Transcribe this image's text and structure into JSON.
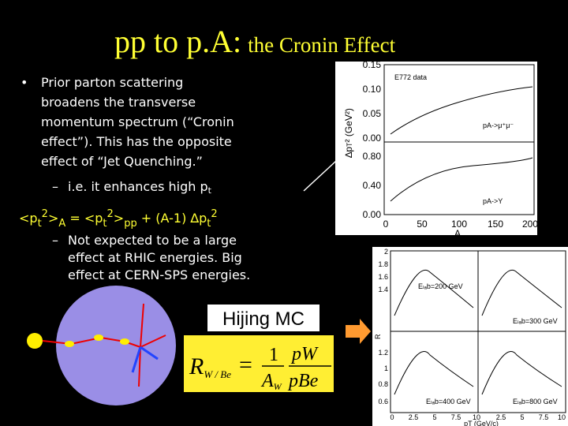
{
  "title": {
    "main": "pp to p.A:",
    "sub": "the Cronin Effect"
  },
  "bullets": [
    "•",
    "Prior parton scattering",
    "broadens the transverse",
    "momentum spectrum (“Cronin",
    "effect”).  This has the opposite",
    "effect of “Jet Quenching.”"
  ],
  "sub_bullet": {
    "dash": "–",
    "text": "i.e. it enhances high p",
    "sub": "t"
  },
  "formula": [
    "<p",
    "t",
    "2",
    ">",
    "A",
    " = <p",
    "t",
    "2",
    ">",
    "pp",
    " + (A-1) ",
    "∆p",
    "t",
    "2"
  ],
  "sub_bullet2": {
    "dash": "–",
    "lines": [
      "Not expected to be a large",
      "effect at RHIC energies.  Big",
      "effect at CERN-SPS energies."
    ]
  },
  "hijing": "Hijing MC",
  "ratio": {
    "R": "R",
    "R_sub": "W / Be",
    "eq": "=",
    "one": "1",
    "A": "A",
    "A_sub": "W",
    "num": "pW",
    "den": "pBe"
  },
  "figure1": {
    "yticks_top": [
      "0.15",
      "0.10",
      "0.05",
      "0.00"
    ],
    "yticks_bottom": [
      "0.80",
      "0.40",
      "0.00"
    ],
    "xticks": [
      "0",
      "50",
      "100",
      "150",
      "200"
    ],
    "xlabel": "A",
    "ylabel": "∆p",
    "ylabel_rest": "T",
    "ylabel_unit": "² (GeV²)",
    "legend": "E772 data",
    "label_top": "pA->μ⁺μ⁻",
    "label_bottom": "pA->Y"
  },
  "figure2": {
    "yticks": [
      "2",
      "1.8",
      "1.6",
      "1.4",
      "1.2",
      "1",
      "0.8",
      "0.6"
    ],
    "xticks": [
      "0",
      "2.5",
      "5",
      "7.5",
      "10"
    ],
    "xlabel": "p",
    "xlabel_rest": "T (GeV/c)",
    "ylabel": "R",
    "panels": [
      "Eₗₐb=200 GeV",
      "Eₗₐb=300 GeV",
      "Eₗₐb=400 GeV",
      "Eₗₐb=800 GeV"
    ]
  }
}
